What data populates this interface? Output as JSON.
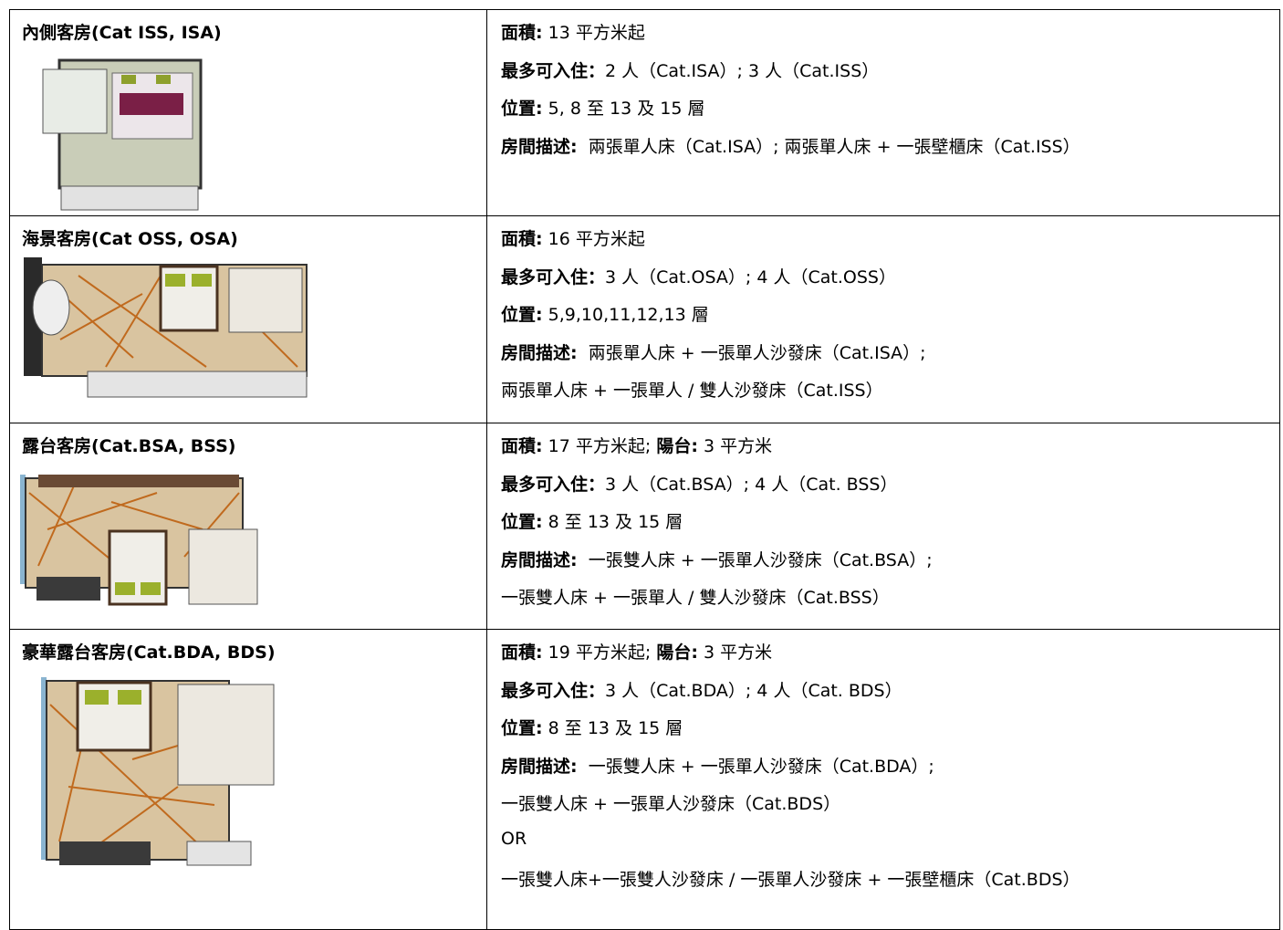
{
  "table": {
    "rows": [
      {
        "title": "內側客房(Cat ISS, ISA)",
        "lines": [
          [
            {
              "bold": "面積:"
            },
            {
              "text": " 13 平方米起"
            }
          ],
          [
            {
              "bold": "最多可入住："
            },
            {
              "text": "2 人（Cat.ISA）; 3 人（Cat.ISS）"
            }
          ],
          [
            {
              "bold": "位置:"
            },
            {
              "text": " 5, 8 至 13 及 15 層"
            }
          ],
          [
            {
              "bold": "房間描述:"
            },
            {
              "text": "  兩張單人床（Cat.ISA）; 兩張單人床 + 一張壁櫃床（Cat.ISS）"
            }
          ]
        ]
      },
      {
        "title": "海景客房(Cat OSS, OSA)",
        "lines": [
          [
            {
              "bold": "面積:"
            },
            {
              "text": " 16 平方米起"
            }
          ],
          [
            {
              "bold": "最多可入住："
            },
            {
              "text": "3 人（Cat.OSA）; 4 人（Cat.OSS）"
            }
          ],
          [
            {
              "bold": "位置:"
            },
            {
              "text": " 5,9,10,11,12,13 層"
            }
          ],
          [
            {
              "bold": "房間描述:"
            },
            {
              "text": "  兩張單人床 + 一張單人沙發床（Cat.ISA）;"
            }
          ],
          [
            {
              "text": "兩張單人床 + 一張單人 / 雙人沙發床（Cat.ISS）"
            }
          ]
        ]
      },
      {
        "title": "露台客房(Cat.BSA, BSS)",
        "lines": [
          [
            {
              "bold": "面積:"
            },
            {
              "text": " 17 平方米起; "
            },
            {
              "bold": "陽台:"
            },
            {
              "text": " 3 平方米"
            }
          ],
          [
            {
              "bold": "最多可入住："
            },
            {
              "text": "3 人（Cat.BSA）; 4 人（Cat. BSS）"
            }
          ],
          [
            {
              "bold": "位置:"
            },
            {
              "text": " 8 至 13 及 15 層"
            }
          ],
          [
            {
              "bold": "房間描述:"
            },
            {
              "text": "  一張雙人床 + 一張單人沙發床（Cat.BSA）;"
            }
          ],
          [
            {
              "text": "一張雙人床 + 一張單人 / 雙人沙發床（Cat.BSS）"
            }
          ]
        ]
      },
      {
        "title": "豪華露台客房(Cat.BDA, BDS)",
        "lines": [
          [
            {
              "bold": "面積:"
            },
            {
              "text": " 19 平方米起; "
            },
            {
              "bold": "陽台:"
            },
            {
              "text": " 3 平方米"
            }
          ],
          [
            {
              "bold": "最多可入住："
            },
            {
              "text": "3 人（Cat.BDA）; 4 人（Cat. BDS）"
            }
          ],
          [
            {
              "bold": "位置:"
            },
            {
              "text": " 8 至 13 及 15 層"
            }
          ],
          [
            {
              "bold": "房間描述:"
            },
            {
              "text": "  一張雙人床 + 一張單人沙發床（Cat.BDA）;"
            }
          ],
          [
            {
              "text": "一張雙人床 + 一張單人沙發床（Cat.BDS）"
            }
          ],
          [
            {
              "text": "OR"
            }
          ],
          [
            {
              "text": "一張雙人床+一張雙人沙發床 / 一張單人沙發床 + 一張壁櫃床（Cat.BDS）"
            }
          ]
        ]
      }
    ]
  }
}
